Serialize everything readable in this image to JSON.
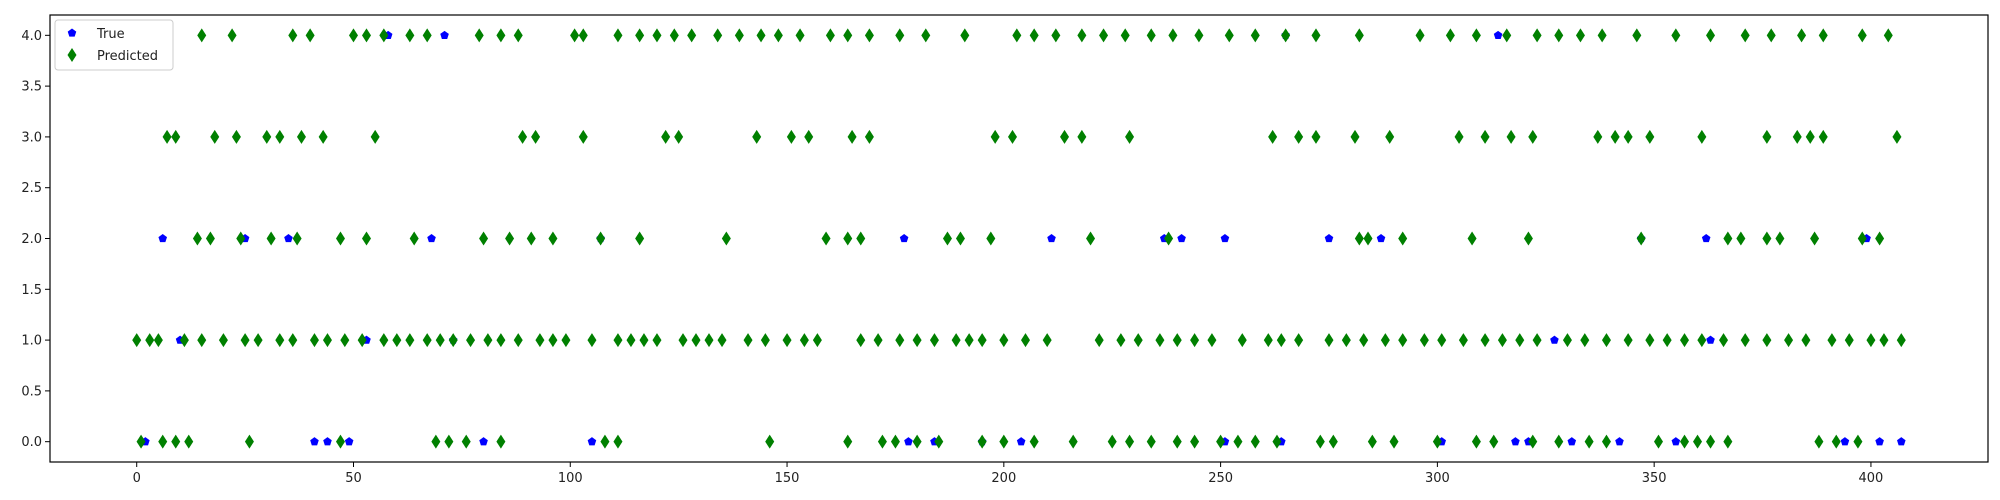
{
  "chart_data": {
    "type": "scatter",
    "title": "",
    "xlabel": "",
    "ylabel": "",
    "xlim": [
      -20,
      427
    ],
    "ylim": [
      -0.2,
      4.2
    ],
    "x_ticks": [
      0,
      50,
      100,
      150,
      200,
      250,
      300,
      350,
      400
    ],
    "y_ticks": [
      0.0,
      0.5,
      1.0,
      1.5,
      2.0,
      2.5,
      3.0,
      3.5,
      4.0
    ],
    "x_tick_labels": [
      "0",
      "50",
      "100",
      "150",
      "200",
      "250",
      "300",
      "350",
      "400"
    ],
    "y_tick_labels": [
      "0.0",
      "0.5",
      "1.0",
      "1.5",
      "2.0",
      "2.5",
      "3.0",
      "3.5",
      "4.0"
    ],
    "grid": false,
    "legend_position": "upper-left",
    "series": [
      {
        "name": "True",
        "color": "#0000ff",
        "marker": "pentagon",
        "points": [
          [
            2,
            0
          ],
          [
            41,
            0
          ],
          [
            44,
            0
          ],
          [
            49,
            0
          ],
          [
            80,
            0
          ],
          [
            105,
            0
          ],
          [
            178,
            0
          ],
          [
            184,
            0
          ],
          [
            195,
            0
          ],
          [
            204,
            0
          ],
          [
            251,
            0
          ],
          [
            264,
            0
          ],
          [
            301,
            0
          ],
          [
            318,
            0
          ],
          [
            321,
            0
          ],
          [
            331,
            0
          ],
          [
            342,
            0
          ],
          [
            355,
            0
          ],
          [
            394,
            0
          ],
          [
            402,
            0
          ],
          [
            407,
            0
          ],
          [
            10,
            1
          ],
          [
            53,
            1
          ],
          [
            73,
            1
          ],
          [
            327,
            1
          ],
          [
            363,
            1
          ],
          [
            6,
            2
          ],
          [
            25,
            2
          ],
          [
            35,
            2
          ],
          [
            68,
            2
          ],
          [
            107,
            2
          ],
          [
            177,
            2
          ],
          [
            211,
            2
          ],
          [
            237,
            2
          ],
          [
            241,
            2
          ],
          [
            251,
            2
          ],
          [
            275,
            2
          ],
          [
            287,
            2
          ],
          [
            347,
            2
          ],
          [
            362,
            2
          ],
          [
            399,
            2
          ],
          [
            58,
            4
          ],
          [
            71,
            4
          ],
          [
            265,
            4
          ],
          [
            314,
            4
          ]
        ]
      },
      {
        "name": "Predicted",
        "color": "#008000",
        "marker": "thin-diamond",
        "points": [
          [
            1,
            0
          ],
          [
            6,
            0
          ],
          [
            9,
            0
          ],
          [
            12,
            0
          ],
          [
            26,
            0
          ],
          [
            47,
            0
          ],
          [
            69,
            0
          ],
          [
            72,
            0
          ],
          [
            76,
            0
          ],
          [
            84,
            0
          ],
          [
            108,
            0
          ],
          [
            111,
            0
          ],
          [
            146,
            0
          ],
          [
            164,
            0
          ],
          [
            172,
            0
          ],
          [
            175,
            0
          ],
          [
            180,
            0
          ],
          [
            185,
            0
          ],
          [
            195,
            0
          ],
          [
            200,
            0
          ],
          [
            207,
            0
          ],
          [
            216,
            0
          ],
          [
            225,
            0
          ],
          [
            229,
            0
          ],
          [
            234,
            0
          ],
          [
            240,
            0
          ],
          [
            244,
            0
          ],
          [
            250,
            0
          ],
          [
            254,
            0
          ],
          [
            258,
            0
          ],
          [
            263,
            0
          ],
          [
            273,
            0
          ],
          [
            276,
            0
          ],
          [
            285,
            0
          ],
          [
            290,
            0
          ],
          [
            300,
            0
          ],
          [
            309,
            0
          ],
          [
            313,
            0
          ],
          [
            322,
            0
          ],
          [
            328,
            0
          ],
          [
            335,
            0
          ],
          [
            339,
            0
          ],
          [
            351,
            0
          ],
          [
            357,
            0
          ],
          [
            360,
            0
          ],
          [
            363,
            0
          ],
          [
            367,
            0
          ],
          [
            388,
            0
          ],
          [
            392,
            0
          ],
          [
            397,
            0
          ],
          [
            0,
            1
          ],
          [
            3,
            1
          ],
          [
            5,
            1
          ],
          [
            11,
            1
          ],
          [
            15,
            1
          ],
          [
            20,
            1
          ],
          [
            25,
            1
          ],
          [
            28,
            1
          ],
          [
            33,
            1
          ],
          [
            36,
            1
          ],
          [
            41,
            1
          ],
          [
            44,
            1
          ],
          [
            48,
            1
          ],
          [
            52,
            1
          ],
          [
            57,
            1
          ],
          [
            60,
            1
          ],
          [
            63,
            1
          ],
          [
            67,
            1
          ],
          [
            70,
            1
          ],
          [
            73,
            1
          ],
          [
            77,
            1
          ],
          [
            81,
            1
          ],
          [
            84,
            1
          ],
          [
            88,
            1
          ],
          [
            93,
            1
          ],
          [
            96,
            1
          ],
          [
            99,
            1
          ],
          [
            105,
            1
          ],
          [
            111,
            1
          ],
          [
            114,
            1
          ],
          [
            117,
            1
          ],
          [
            120,
            1
          ],
          [
            126,
            1
          ],
          [
            129,
            1
          ],
          [
            132,
            1
          ],
          [
            135,
            1
          ],
          [
            141,
            1
          ],
          [
            145,
            1
          ],
          [
            150,
            1
          ],
          [
            154,
            1
          ],
          [
            157,
            1
          ],
          [
            167,
            1
          ],
          [
            171,
            1
          ],
          [
            176,
            1
          ],
          [
            180,
            1
          ],
          [
            184,
            1
          ],
          [
            189,
            1
          ],
          [
            192,
            1
          ],
          [
            195,
            1
          ],
          [
            200,
            1
          ],
          [
            205,
            1
          ],
          [
            210,
            1
          ],
          [
            222,
            1
          ],
          [
            227,
            1
          ],
          [
            231,
            1
          ],
          [
            236,
            1
          ],
          [
            240,
            1
          ],
          [
            244,
            1
          ],
          [
            248,
            1
          ],
          [
            255,
            1
          ],
          [
            261,
            1
          ],
          [
            264,
            1
          ],
          [
            268,
            1
          ],
          [
            275,
            1
          ],
          [
            279,
            1
          ],
          [
            283,
            1
          ],
          [
            288,
            1
          ],
          [
            292,
            1
          ],
          [
            297,
            1
          ],
          [
            301,
            1
          ],
          [
            306,
            1
          ],
          [
            311,
            1
          ],
          [
            315,
            1
          ],
          [
            319,
            1
          ],
          [
            323,
            1
          ],
          [
            330,
            1
          ],
          [
            334,
            1
          ],
          [
            339,
            1
          ],
          [
            344,
            1
          ],
          [
            349,
            1
          ],
          [
            353,
            1
          ],
          [
            357,
            1
          ],
          [
            361,
            1
          ],
          [
            366,
            1
          ],
          [
            371,
            1
          ],
          [
            376,
            1
          ],
          [
            381,
            1
          ],
          [
            385,
            1
          ],
          [
            391,
            1
          ],
          [
            395,
            1
          ],
          [
            400,
            1
          ],
          [
            403,
            1
          ],
          [
            407,
            1
          ],
          [
            14,
            2
          ],
          [
            17,
            2
          ],
          [
            24,
            2
          ],
          [
            31,
            2
          ],
          [
            37,
            2
          ],
          [
            47,
            2
          ],
          [
            53,
            2
          ],
          [
            64,
            2
          ],
          [
            80,
            2
          ],
          [
            86,
            2
          ],
          [
            91,
            2
          ],
          [
            96,
            2
          ],
          [
            107,
            2
          ],
          [
            116,
            2
          ],
          [
            136,
            2
          ],
          [
            159,
            2
          ],
          [
            164,
            2
          ],
          [
            167,
            2
          ],
          [
            187,
            2
          ],
          [
            190,
            2
          ],
          [
            197,
            2
          ],
          [
            220,
            2
          ],
          [
            238,
            2
          ],
          [
            282,
            2
          ],
          [
            284,
            2
          ],
          [
            292,
            2
          ],
          [
            308,
            2
          ],
          [
            321,
            2
          ],
          [
            347,
            2
          ],
          [
            367,
            2
          ],
          [
            370,
            2
          ],
          [
            376,
            2
          ],
          [
            379,
            2
          ],
          [
            387,
            2
          ],
          [
            398,
            2
          ],
          [
            402,
            2
          ],
          [
            7,
            3
          ],
          [
            9,
            3
          ],
          [
            18,
            3
          ],
          [
            23,
            3
          ],
          [
            30,
            3
          ],
          [
            33,
            3
          ],
          [
            38,
            3
          ],
          [
            43,
            3
          ],
          [
            55,
            3
          ],
          [
            89,
            3
          ],
          [
            92,
            3
          ],
          [
            103,
            3
          ],
          [
            122,
            3
          ],
          [
            125,
            3
          ],
          [
            143,
            3
          ],
          [
            151,
            3
          ],
          [
            155,
            3
          ],
          [
            165,
            3
          ],
          [
            169,
            3
          ],
          [
            198,
            3
          ],
          [
            202,
            3
          ],
          [
            214,
            3
          ],
          [
            218,
            3
          ],
          [
            229,
            3
          ],
          [
            262,
            3
          ],
          [
            268,
            3
          ],
          [
            272,
            3
          ],
          [
            281,
            3
          ],
          [
            289,
            3
          ],
          [
            305,
            3
          ],
          [
            311,
            3
          ],
          [
            317,
            3
          ],
          [
            322,
            3
          ],
          [
            337,
            3
          ],
          [
            341,
            3
          ],
          [
            344,
            3
          ],
          [
            349,
            3
          ],
          [
            361,
            3
          ],
          [
            376,
            3
          ],
          [
            383,
            3
          ],
          [
            386,
            3
          ],
          [
            389,
            3
          ],
          [
            406,
            3
          ],
          [
            15,
            4
          ],
          [
            22,
            4
          ],
          [
            36,
            4
          ],
          [
            40,
            4
          ],
          [
            50,
            4
          ],
          [
            53,
            4
          ],
          [
            57,
            4
          ],
          [
            63,
            4
          ],
          [
            67,
            4
          ],
          [
            79,
            4
          ],
          [
            84,
            4
          ],
          [
            88,
            4
          ],
          [
            101,
            4
          ],
          [
            103,
            4
          ],
          [
            111,
            4
          ],
          [
            116,
            4
          ],
          [
            120,
            4
          ],
          [
            124,
            4
          ],
          [
            128,
            4
          ],
          [
            134,
            4
          ],
          [
            139,
            4
          ],
          [
            144,
            4
          ],
          [
            148,
            4
          ],
          [
            153,
            4
          ],
          [
            160,
            4
          ],
          [
            164,
            4
          ],
          [
            169,
            4
          ],
          [
            176,
            4
          ],
          [
            182,
            4
          ],
          [
            191,
            4
          ],
          [
            203,
            4
          ],
          [
            207,
            4
          ],
          [
            212,
            4
          ],
          [
            218,
            4
          ],
          [
            223,
            4
          ],
          [
            228,
            4
          ],
          [
            234,
            4
          ],
          [
            239,
            4
          ],
          [
            245,
            4
          ],
          [
            252,
            4
          ],
          [
            258,
            4
          ],
          [
            265,
            4
          ],
          [
            272,
            4
          ],
          [
            282,
            4
          ],
          [
            296,
            4
          ],
          [
            303,
            4
          ],
          [
            309,
            4
          ],
          [
            316,
            4
          ],
          [
            323,
            4
          ],
          [
            328,
            4
          ],
          [
            333,
            4
          ],
          [
            338,
            4
          ],
          [
            346,
            4
          ],
          [
            355,
            4
          ],
          [
            363,
            4
          ],
          [
            371,
            4
          ],
          [
            377,
            4
          ],
          [
            384,
            4
          ],
          [
            389,
            4
          ],
          [
            398,
            4
          ],
          [
            404,
            4
          ]
        ]
      }
    ]
  }
}
